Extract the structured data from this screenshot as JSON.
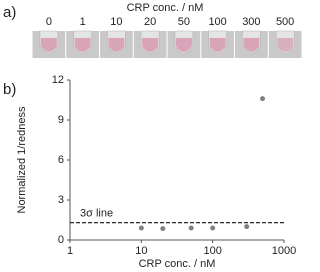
{
  "panel_a": {
    "label": "a)",
    "title": "CRP conc. / nM",
    "concentrations": [
      0,
      1,
      10,
      20,
      50,
      100,
      300,
      500
    ]
  },
  "chart_data": {
    "type": "scatter",
    "panel_label": "b)",
    "xlabel": "CRP conc. / nM",
    "ylabel": "Normalized 1/redness",
    "x": [
      10,
      20,
      50,
      100,
      300,
      500
    ],
    "values": [
      0.9,
      0.85,
      0.9,
      0.9,
      1.0,
      10.6
    ],
    "color": "#808080",
    "xscale": "log",
    "xlim": [
      1,
      1000
    ],
    "xticks": [
      1,
      10,
      100,
      1000
    ],
    "ylim": [
      0,
      12
    ],
    "yticks": [
      0,
      3,
      6,
      9,
      12
    ],
    "threshold": {
      "label": "3σ line",
      "value": 1.3
    }
  }
}
